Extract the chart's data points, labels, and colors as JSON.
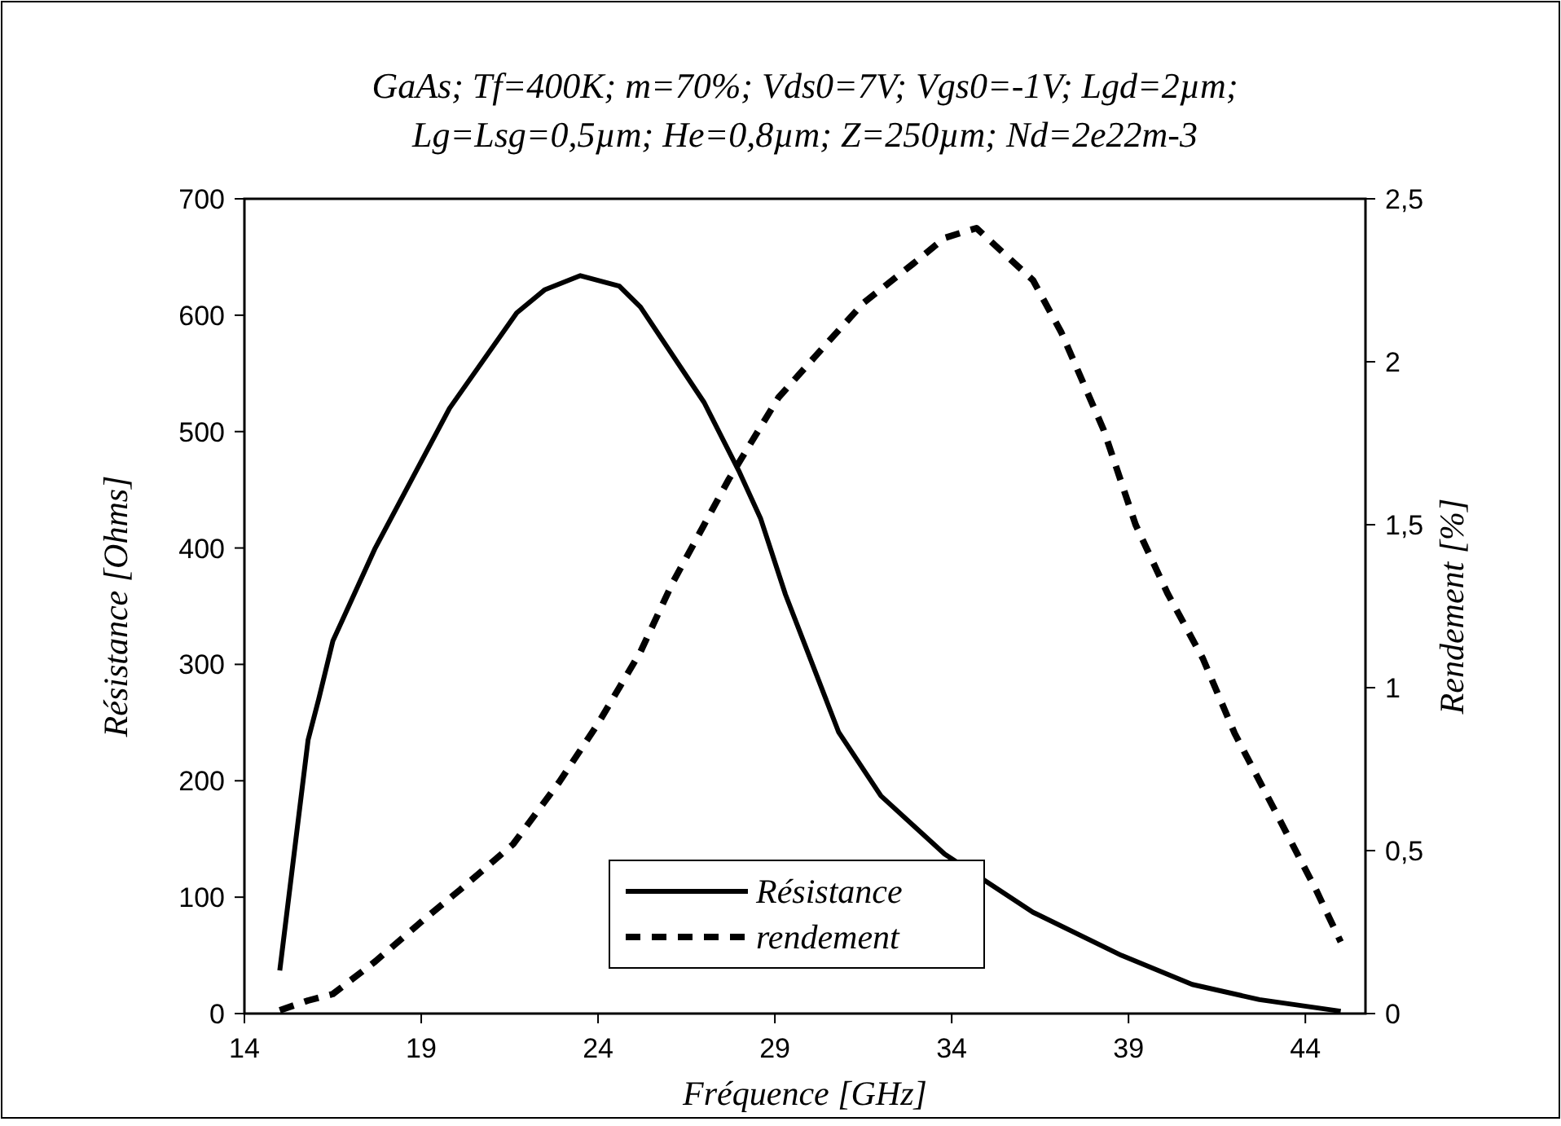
{
  "chart_data": {
    "type": "line",
    "title": "GaAs; Tf=400K; m=70%; Vds0=7V; Vgs0=-1V; Lgd=2µm;\nLg=Lsg=0,5µm; He=0,8µm; Z=250µm; Nd=2e22m-3",
    "xlabel": "Fréquence [GHz]",
    "ylabel": "Résistance [Ohms]",
    "y2label": "Rendement [%]",
    "xlim": [
      14,
      45.7
    ],
    "xticks": [
      14,
      19,
      24,
      29,
      34,
      39,
      44
    ],
    "ylim": [
      0,
      700
    ],
    "yticks": [
      0,
      100,
      200,
      300,
      400,
      500,
      600,
      700
    ],
    "y2lim": [
      0,
      2.5
    ],
    "y2ticks": [
      {
        "value": 0,
        "label": "0"
      },
      {
        "value": 0.5,
        "label": "0,5"
      },
      {
        "value": 1,
        "label": "1"
      },
      {
        "value": 1.5,
        "label": "1,5"
      },
      {
        "value": 2,
        "label": "2"
      },
      {
        "value": 2.5,
        "label": "2,5"
      }
    ],
    "grid": false,
    "legend": "bottom",
    "series": [
      {
        "name": "Résistance",
        "color": "#000000",
        "line_style": "solid",
        "x": [
          15,
          15.8,
          16.1,
          16.5,
          17.7,
          19.8,
          21.7,
          22.5,
          23.5,
          24.6,
          25.2,
          27,
          28,
          28.6,
          29.3,
          30.8,
          32,
          33.8,
          36.3,
          38.8,
          40.8,
          42.7,
          45
        ],
        "values": [
          37,
          235,
          270,
          320,
          400,
          520,
          602,
          622,
          634,
          625,
          607,
          525,
          465,
          425,
          360,
          242,
          187,
          137,
          87,
          50,
          25,
          12,
          2
        ]
      },
      {
        "name": "rendement",
        "color": "#000000",
        "line_style": "dashed",
        "axis": "y2",
        "x": [
          15,
          15.8,
          16.5,
          17.7,
          19.2,
          20.1,
          21.6,
          22.9,
          24,
          25.2,
          26.1,
          27,
          27.7,
          29.1,
          30.5,
          31.5,
          32.9,
          33.8,
          34.7,
          36.3,
          37.1,
          38.3,
          39.2,
          40.1,
          41.1,
          42,
          43.2,
          44.3,
          45
        ],
        "values": [
          0.01,
          0.04,
          0.06,
          0.16,
          0.3,
          0.38,
          0.52,
          0.71,
          0.89,
          1.11,
          1.32,
          1.5,
          1.64,
          1.89,
          2.06,
          2.18,
          2.3,
          2.38,
          2.41,
          2.25,
          2.09,
          1.79,
          1.5,
          1.29,
          1.09,
          0.86,
          0.61,
          0.38,
          0.22
        ]
      }
    ]
  }
}
